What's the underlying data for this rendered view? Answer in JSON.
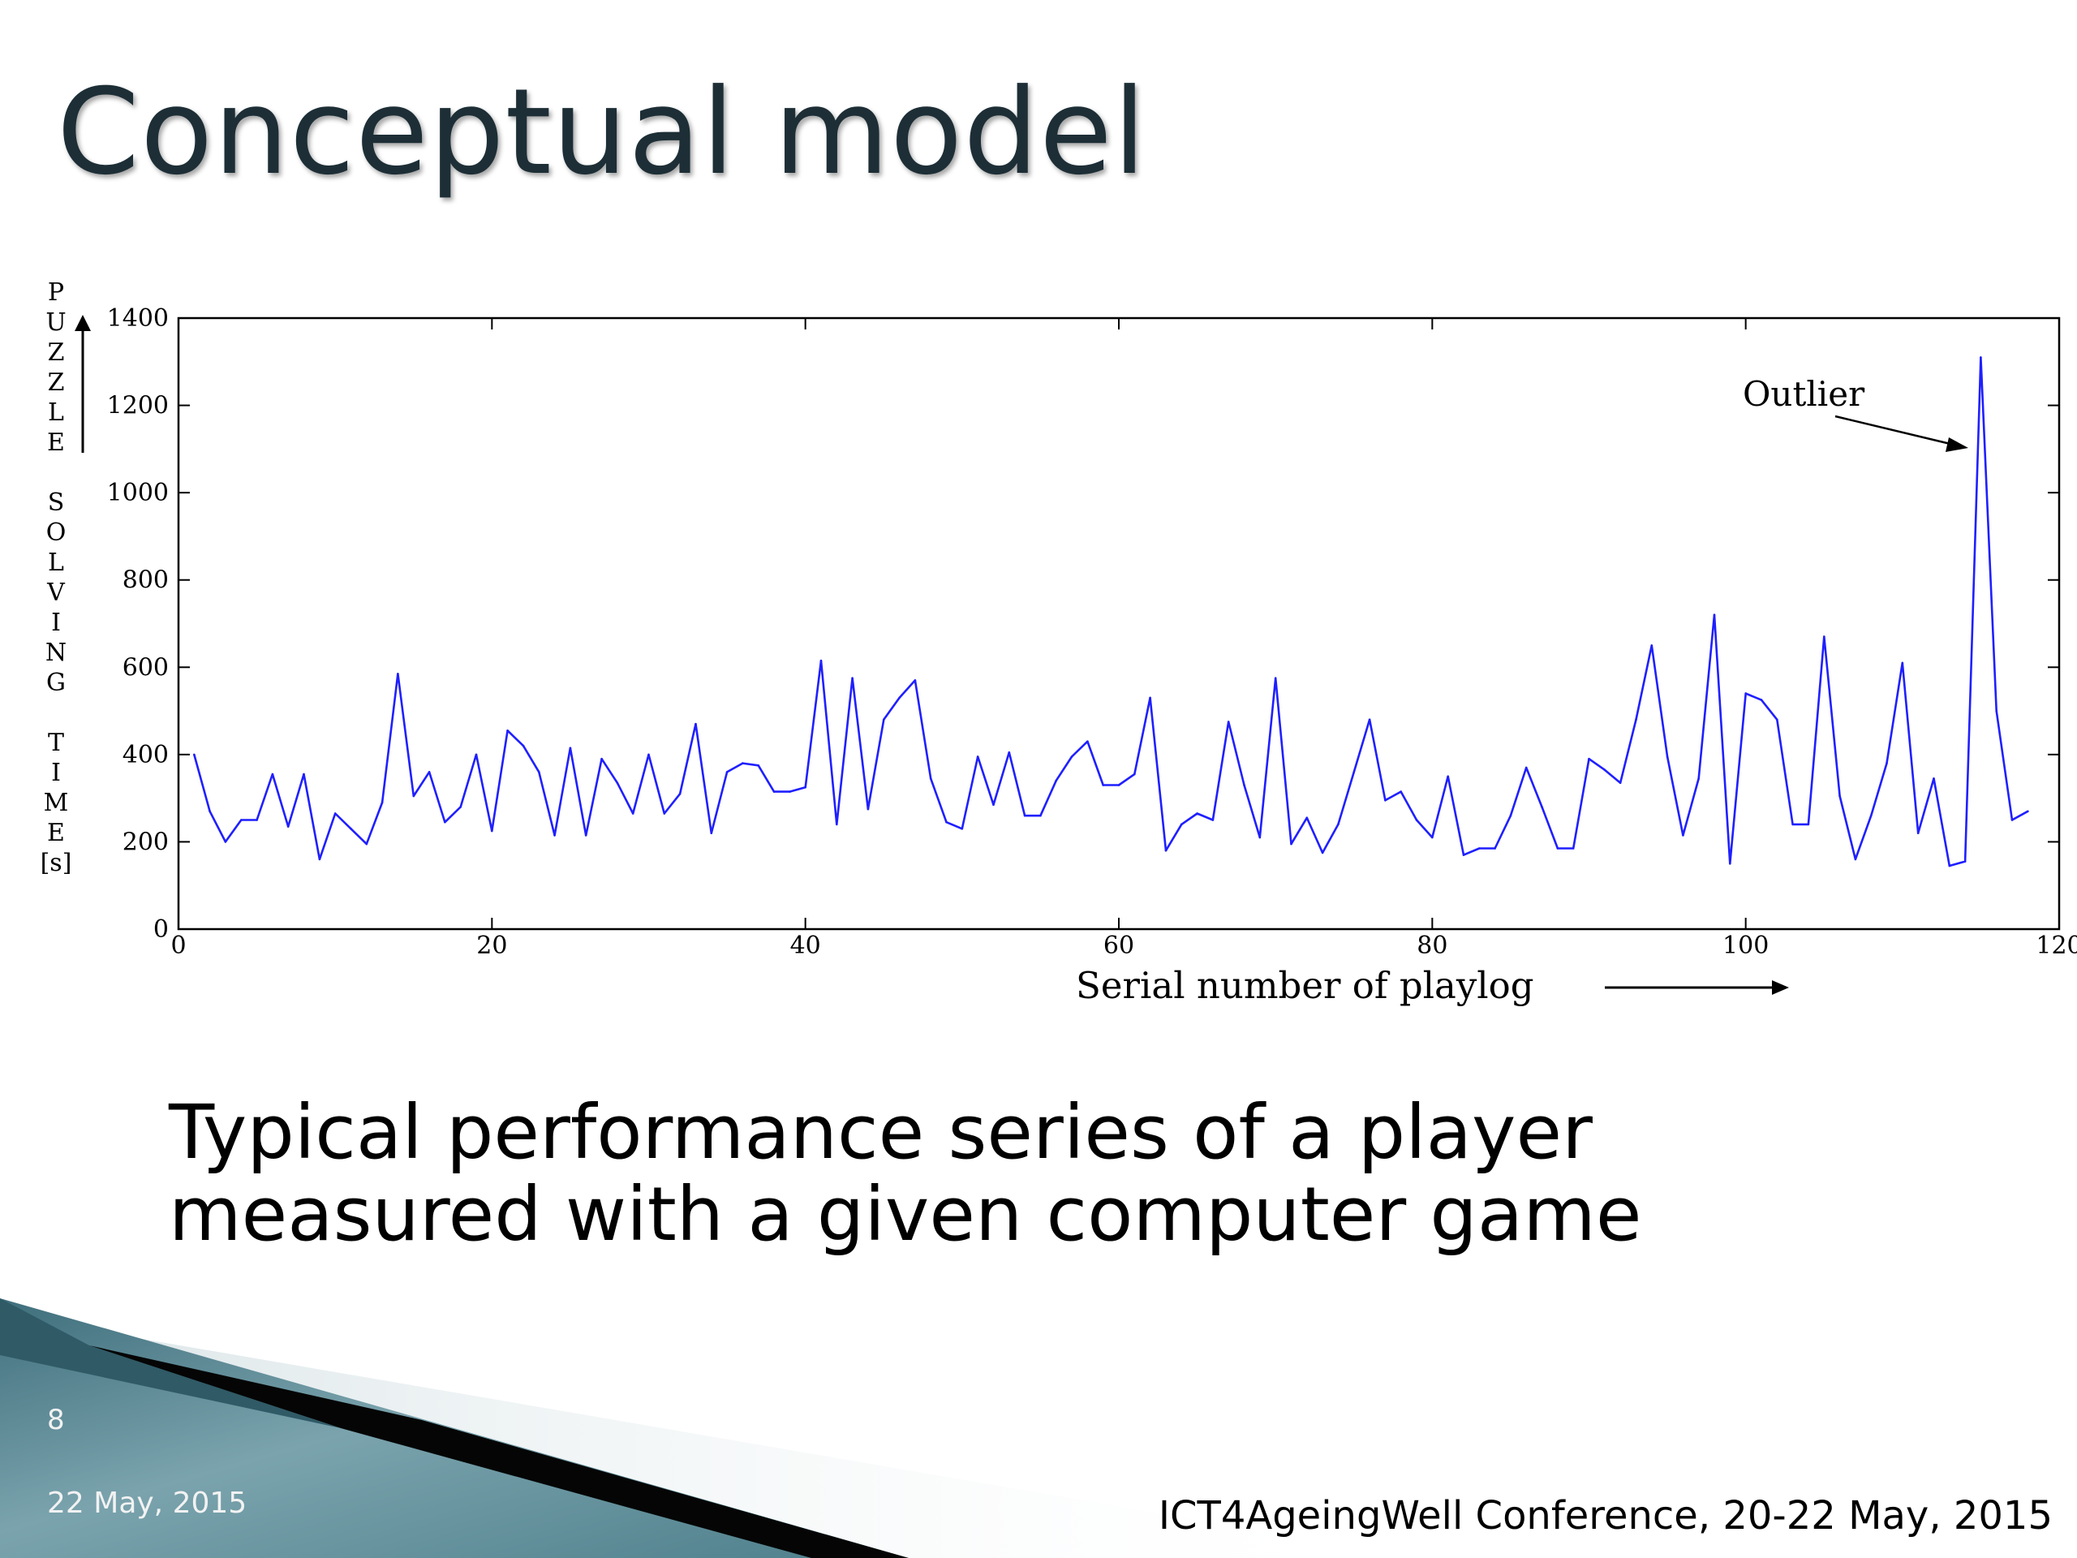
{
  "slide": {
    "title": "Conceptual model",
    "caption_line1": "Typical performance series of a player",
    "caption_line2": "measured with a given computer game",
    "slide_number": "8",
    "date": "22 May, 2015",
    "conference": "ICT4AgeingWell Conference, 20-22 May, 2015"
  },
  "chart_data": {
    "type": "line",
    "xlabel": "Serial number of playlog",
    "ylabel_letters": [
      "P",
      "U",
      "Z",
      "Z",
      "L",
      "E",
      "",
      "S",
      "O",
      "L",
      "V",
      "I",
      "N",
      "G",
      "",
      "T",
      "I",
      "M",
      "E",
      "[s]"
    ],
    "xlim": [
      0,
      120
    ],
    "ylim": [
      0,
      1400
    ],
    "xticks": [
      0,
      20,
      40,
      60,
      80,
      100,
      120
    ],
    "yticks": [
      0,
      200,
      400,
      600,
      800,
      1000,
      1200,
      1400
    ],
    "grid": false,
    "annotation": {
      "text": "Outlier",
      "x": 115,
      "y": 1300
    },
    "series": [
      {
        "color": "#1f1fff",
        "x": [
          1,
          2,
          3,
          4,
          5,
          6,
          7,
          8,
          9,
          10,
          11,
          12,
          13,
          14,
          15,
          16,
          17,
          18,
          19,
          20,
          21,
          22,
          23,
          24,
          25,
          26,
          27,
          28,
          29,
          30,
          31,
          32,
          33,
          34,
          35,
          36,
          37,
          38,
          39,
          40,
          41,
          42,
          43,
          44,
          45,
          46,
          47,
          48,
          49,
          50,
          51,
          52,
          53,
          54,
          55,
          56,
          57,
          58,
          59,
          60,
          61,
          62,
          63,
          64,
          65,
          66,
          67,
          68,
          69,
          70,
          71,
          72,
          73,
          74,
          75,
          76,
          77,
          78,
          79,
          80,
          81,
          82,
          83,
          84,
          85,
          86,
          87,
          88,
          89,
          90,
          91,
          92,
          93,
          94,
          95,
          96,
          97,
          98,
          99,
          100,
          101,
          102,
          103,
          104,
          105,
          106,
          107,
          108,
          109,
          110,
          111,
          112,
          113,
          114,
          115,
          116,
          117,
          118
        ],
        "y": [
          400,
          270,
          200,
          250,
          250,
          355,
          235,
          355,
          160,
          265,
          230,
          195,
          290,
          585,
          305,
          360,
          245,
          280,
          400,
          225,
          455,
          420,
          360,
          215,
          415,
          215,
          390,
          335,
          265,
          400,
          265,
          310,
          470,
          220,
          360,
          380,
          375,
          315,
          315,
          325,
          615,
          240,
          575,
          275,
          480,
          530,
          570,
          345,
          245,
          230,
          395,
          285,
          405,
          260,
          260,
          340,
          395,
          430,
          330,
          330,
          355,
          530,
          180,
          240,
          265,
          250,
          475,
          330,
          210,
          575,
          195,
          255,
          175,
          240,
          360,
          480,
          295,
          315,
          250,
          210,
          350,
          170,
          185,
          185,
          260,
          370,
          280,
          185,
          185,
          390,
          365,
          335,
          480,
          650,
          395,
          215,
          345,
          720,
          150,
          540,
          525,
          480,
          240,
          240,
          670,
          305,
          160,
          260,
          380,
          610,
          220,
          345,
          145,
          155,
          1310,
          500,
          250,
          270
        ]
      }
    ]
  }
}
